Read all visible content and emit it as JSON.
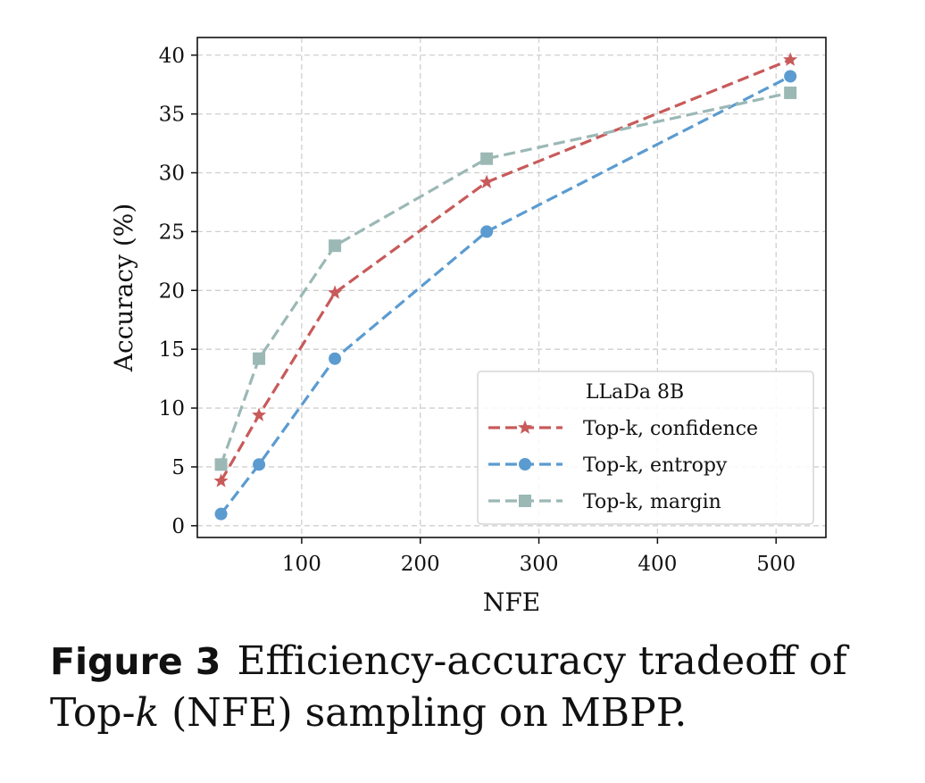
{
  "chart_data": {
    "type": "line",
    "xlabel": "NFE",
    "ylabel": "Accuracy (%)",
    "xlim": [
      12,
      542
    ],
    "ylim": [
      -1,
      41.5
    ],
    "xticks": [
      100,
      200,
      300,
      400,
      500
    ],
    "yticks": [
      0,
      5,
      10,
      15,
      20,
      25,
      30,
      35,
      40
    ],
    "grid": true,
    "legend": {
      "title": "LLaDa 8B",
      "placement": "lower-right"
    },
    "x": [
      32,
      64,
      128,
      256,
      512
    ],
    "series": [
      {
        "name": "Top-k, confidence",
        "values": [
          3.8,
          9.4,
          19.8,
          29.2,
          39.6
        ],
        "color": "#c85a5a",
        "marker": "star"
      },
      {
        "name": "Top-k, entropy",
        "values": [
          1.0,
          5.2,
          14.2,
          25.0,
          38.2
        ],
        "color": "#5b9bd0",
        "marker": "circle"
      },
      {
        "name": "Top-k, margin",
        "values": [
          5.2,
          14.2,
          23.8,
          31.2,
          36.8
        ],
        "color": "#9bb8b5",
        "marker": "square"
      }
    ]
  },
  "caption": {
    "label": "Figure 3",
    "text_before": "Efficiency-accuracy tradeoff of Top-",
    "variable": "k",
    "text_after": " (NFE) sampling on MBPP."
  }
}
